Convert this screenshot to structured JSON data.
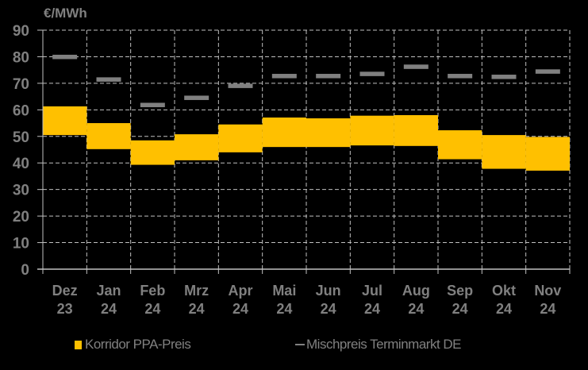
{
  "chart_data": {
    "type": "bar",
    "subtype": "floating-range-with-marker",
    "title": "",
    "ylabel": "€/MWh",
    "xlabel": "",
    "ylim": [
      0,
      90
    ],
    "yticks": [
      0,
      10,
      20,
      30,
      40,
      50,
      60,
      70,
      80,
      90
    ],
    "grid": true,
    "legend_position": "bottom",
    "categories": [
      [
        "Dez",
        "23"
      ],
      [
        "Jan",
        "24"
      ],
      [
        "Feb",
        "24"
      ],
      [
        "Mrz",
        "24"
      ],
      [
        "Apr",
        "24"
      ],
      [
        "Mai",
        "24"
      ],
      [
        "Jun",
        "24"
      ],
      [
        "Jul",
        "24"
      ],
      [
        "Aug",
        "24"
      ],
      [
        "Sep",
        "24"
      ],
      [
        "Okt",
        "24"
      ],
      [
        "Nov",
        "24"
      ]
    ],
    "series": [
      {
        "name": "Korridor PPA-Preis",
        "type": "range",
        "color": "#ffc000",
        "low": [
          50.5,
          45.2,
          39.3,
          41.0,
          44.0,
          46.0,
          46.0,
          46.6,
          46.4,
          41.4,
          37.8,
          37.1
        ],
        "high": [
          61.3,
          55.0,
          48.5,
          50.8,
          54.5,
          57.1,
          56.8,
          57.8,
          58.0,
          52.3,
          50.5,
          49.8
        ]
      },
      {
        "name": "Mischpreis Terminmarkt DE",
        "type": "marker",
        "color": "#808080",
        "values": [
          80.0,
          71.5,
          61.9,
          64.6,
          69.1,
          72.8,
          72.8,
          73.6,
          76.3,
          72.8,
          72.5,
          74.5
        ]
      }
    ]
  },
  "legend": {
    "items": [
      {
        "label": "Korridor PPA-Preis"
      },
      {
        "label": "Mischpreis Terminmarkt DE"
      }
    ]
  }
}
